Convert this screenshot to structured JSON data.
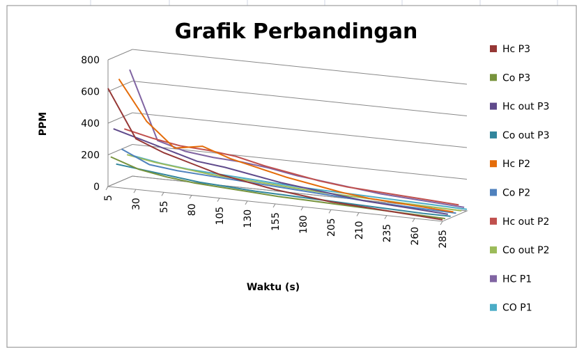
{
  "chart_data": {
    "type": "line3d",
    "title": "Grafik Perbandingan",
    "y_label": "PPM",
    "x_label": "Waktu (s)",
    "categories": [
      "5",
      "30",
      "55",
      "80",
      "105",
      "130",
      "155",
      "180",
      "205",
      "210",
      "235",
      "260",
      "285"
    ],
    "ylim": [
      0,
      800
    ],
    "yticks": [
      0,
      200,
      400,
      600,
      800
    ],
    "grid": true,
    "series": [
      {
        "name": "Hc P3",
        "color": "#953735",
        "values": [
          620,
          320,
          250,
          200,
          150,
          120,
          90,
          70,
          50,
          40,
          30,
          20,
          10
        ]
      },
      {
        "name": "Co P3",
        "color": "#77933c",
        "values": [
          180,
          120,
          90,
          70,
          60,
          50,
          40,
          35,
          30,
          25,
          20,
          15,
          10
        ]
      },
      {
        "name": "Hc out P3",
        "color": "#5f4a8b",
        "values": [
          350,
          300,
          250,
          200,
          180,
          150,
          120,
          100,
          80,
          60,
          50,
          40,
          30
        ]
      },
      {
        "name": "Co out P3",
        "color": "#31859c",
        "values": [
          120,
          100,
          80,
          60,
          50,
          40,
          35,
          30,
          25,
          20,
          15,
          10,
          10
        ]
      },
      {
        "name": "Hc P2",
        "color": "#e46c0a",
        "values": [
          650,
          400,
          250,
          280,
          220,
          180,
          140,
          110,
          80,
          60,
          50,
          40,
          30
        ]
      },
      {
        "name": "Co P2",
        "color": "#4f81bd",
        "values": [
          200,
          120,
          100,
          90,
          80,
          70,
          60,
          50,
          40,
          30,
          25,
          20,
          15
        ]
      },
      {
        "name": "Hc out P2",
        "color": "#c0504d",
        "values": [
          320,
          280,
          250,
          240,
          220,
          180,
          150,
          120,
          100,
          90,
          80,
          70,
          60
        ]
      },
      {
        "name": "Co out P2",
        "color": "#9bbb59",
        "values": [
          150,
          120,
          100,
          80,
          70,
          60,
          50,
          40,
          35,
          30,
          25,
          20,
          15
        ]
      },
      {
        "name": "HC P1",
        "color": "#8064a2",
        "values": [
          680,
          250,
          200,
          180,
          170,
          150,
          120,
          100,
          80,
          60,
          50,
          40,
          30
        ]
      },
      {
        "name": "CO P1",
        "color": "#4bacc6",
        "values": [
          130,
          100,
          80,
          70,
          60,
          50,
          40,
          35,
          30,
          25,
          20,
          15,
          10
        ]
      }
    ]
  }
}
